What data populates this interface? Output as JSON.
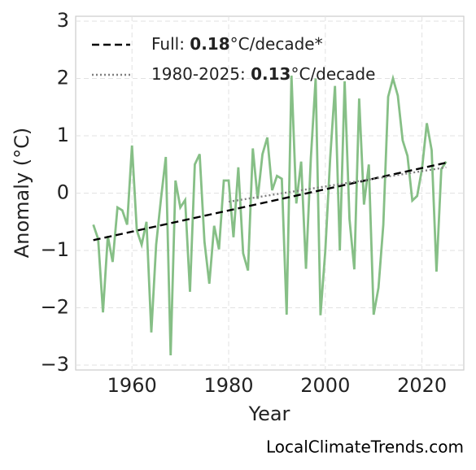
{
  "chart_data": {
    "type": "line",
    "xlabel": "Year",
    "ylabel": "Anomaly (°C)",
    "source": "LocalClimateTrends.com",
    "xlim": [
      1948.35,
      2028.65
    ],
    "ylim": [
      -3.085,
      3.085
    ],
    "xticks": [
      1960,
      1980,
      2000,
      2020
    ],
    "yticks": [
      {
        "value": -3,
        "label": "−3"
      },
      {
        "value": -2,
        "label": "−2"
      },
      {
        "value": -1,
        "label": "−1"
      },
      0,
      1,
      2,
      3
    ],
    "grid": true,
    "series": [
      {
        "name": null,
        "color": "#86bf86",
        "style": "solid",
        "x": [
          1952,
          1953,
          1954,
          1955,
          1956,
          1957,
          1958,
          1959,
          1960,
          1961,
          1962,
          1963,
          1964,
          1965,
          1966,
          1967,
          1968,
          1969,
          1970,
          1971,
          1972,
          1973,
          1974,
          1975,
          1976,
          1977,
          1978,
          1979,
          1980,
          1981,
          1982,
          1983,
          1984,
          1985,
          1986,
          1987,
          1988,
          1989,
          1990,
          1991,
          1992,
          1993,
          1994,
          1995,
          1996,
          1997,
          1998,
          1999,
          2000,
          2001,
          2002,
          2003,
          2004,
          2005,
          2006,
          2007,
          2008,
          2009,
          2010,
          2011,
          2012,
          2013,
          2014,
          2015,
          2016,
          2017,
          2018,
          2019,
          2020,
          2021,
          2022,
          2023,
          2024,
          2025
        ],
        "values": [
          -0.55,
          -0.8,
          -2.08,
          -0.75,
          -1.2,
          -0.25,
          -0.3,
          -0.55,
          0.83,
          -0.65,
          -0.9,
          -0.5,
          -2.43,
          -0.9,
          -0.1,
          0.63,
          -2.83,
          0.22,
          -0.25,
          -0.12,
          -1.72,
          0.5,
          0.68,
          -0.85,
          -1.58,
          -0.57,
          -0.98,
          0.22,
          0.22,
          -0.77,
          0.45,
          -1.05,
          -1.35,
          0.78,
          -0.1,
          0.68,
          0.97,
          0.05,
          0.3,
          0.25,
          -2.12,
          2.05,
          -0.18,
          0.55,
          -1.32,
          0.6,
          2.0,
          -2.13,
          -1.0,
          0.6,
          1.87,
          -1.0,
          1.95,
          -0.45,
          -1.33,
          1.65,
          -0.2,
          0.5,
          -2.12,
          -1.65,
          -0.55,
          1.68,
          2.0,
          1.7,
          0.92,
          0.65,
          -0.13,
          -0.05,
          0.42,
          1.22,
          0.75,
          -1.37,
          0.42,
          0.55
        ]
      },
      {
        "name": [
          "Full: ",
          "0.18",
          "°C/decade*"
        ],
        "color": "#000000",
        "style": "dashed",
        "x": [
          1952,
          2025
        ],
        "values": [
          -0.82,
          0.53
        ]
      },
      {
        "name": [
          "1980-2025: ",
          "0.13",
          "°C/decade"
        ],
        "color": "#808080",
        "style": "dotted",
        "x": [
          1980,
          2025
        ],
        "values": [
          -0.15,
          0.45
        ]
      }
    ]
  }
}
